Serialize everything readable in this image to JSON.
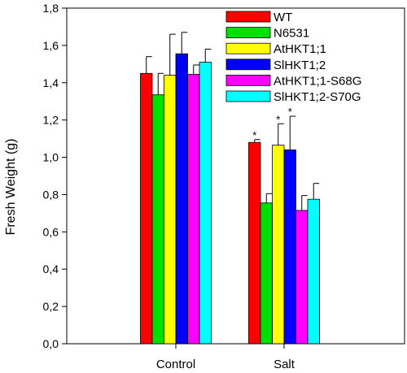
{
  "chart_data": {
    "type": "bar",
    "title": "",
    "xlabel": "",
    "ylabel": "Fresh Weight (g)",
    "ylim": [
      0,
      1.8
    ],
    "yticks": [
      "0,0",
      "0,2",
      "0,4",
      "0,6",
      "0,8",
      "1,0",
      "1,2",
      "1,4",
      "1,6",
      "1,8"
    ],
    "categories": [
      "Control",
      "Salt"
    ],
    "legend_position": "top-right",
    "grid": false,
    "series": [
      {
        "name": "WT",
        "color": "#ff0000",
        "values": [
          1.45,
          1.08
        ],
        "errors": [
          0.09,
          0.015
        ],
        "significant": [
          false,
          true
        ]
      },
      {
        "name": "N6531",
        "color": "#00e000",
        "values": [
          1.335,
          0.755
        ],
        "errors": [
          0.115,
          0.05
        ],
        "significant": [
          false,
          false
        ]
      },
      {
        "name": "AtHKT1;1",
        "color": "#ffff00",
        "values": [
          1.44,
          1.065
        ],
        "errors": [
          0.22,
          0.115
        ],
        "significant": [
          false,
          true
        ]
      },
      {
        "name": "SlHKT1;2",
        "color": "#0000ff",
        "values": [
          1.555,
          1.04
        ],
        "errors": [
          0.115,
          0.18
        ],
        "significant": [
          false,
          true
        ]
      },
      {
        "name": "AtHKT1;1-S68G",
        "color": "#ff00ff",
        "values": [
          1.445,
          0.715
        ],
        "errors": [
          0.05,
          0.08
        ],
        "significant": [
          false,
          false
        ]
      },
      {
        "name": "SlHKT1;2-S70G",
        "color": "#00ffff",
        "values": [
          1.51,
          0.775
        ],
        "errors": [
          0.07,
          0.085
        ],
        "significant": [
          false,
          false
        ]
      }
    ],
    "significance_marker": "*"
  }
}
